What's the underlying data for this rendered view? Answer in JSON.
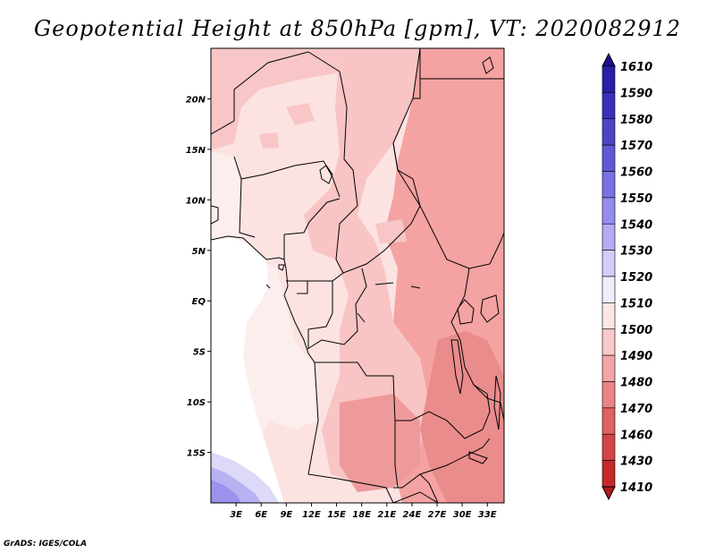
{
  "title": "Geopotential Height at 850hPa [gpm], VT: 2020082912",
  "credit": "GrADS: IGES/COLA",
  "map": {
    "lat_ticks": [
      "20N",
      "15N",
      "10N",
      "5N",
      "EQ",
      "5S",
      "10S",
      "15S"
    ],
    "lat_values": [
      20,
      15,
      10,
      5,
      0,
      -5,
      -10,
      -15
    ],
    "lon_ticks": [
      "3E",
      "6E",
      "9E",
      "12E",
      "15E",
      "18E",
      "21E",
      "24E",
      "27E",
      "30E",
      "33E"
    ],
    "lon_values": [
      3,
      6,
      9,
      12,
      15,
      18,
      21,
      24,
      27,
      30,
      33
    ],
    "lon_range": [
      0,
      35
    ],
    "lat_range": [
      -20,
      25
    ]
  },
  "colorbar": {
    "levels": [
      "1610",
      "1590",
      "1580",
      "1570",
      "1560",
      "1550",
      "1540",
      "1530",
      "1520",
      "1510",
      "1500",
      "1490",
      "1480",
      "1470",
      "1460",
      "1430",
      "1410"
    ],
    "colors": [
      "#1e0f8c",
      "#2a1ea6",
      "#3a30b8",
      "#4d44c8",
      "#6258d6",
      "#7a70e2",
      "#958ced",
      "#b3acf4",
      "#d2cdf8",
      "#f0eefc",
      "#fde6e6",
      "#f9c8c8",
      "#f3a6a6",
      "#eb8484",
      "#e06262",
      "#d44444",
      "#c42a2a",
      "#ae1c1c"
    ]
  }
}
